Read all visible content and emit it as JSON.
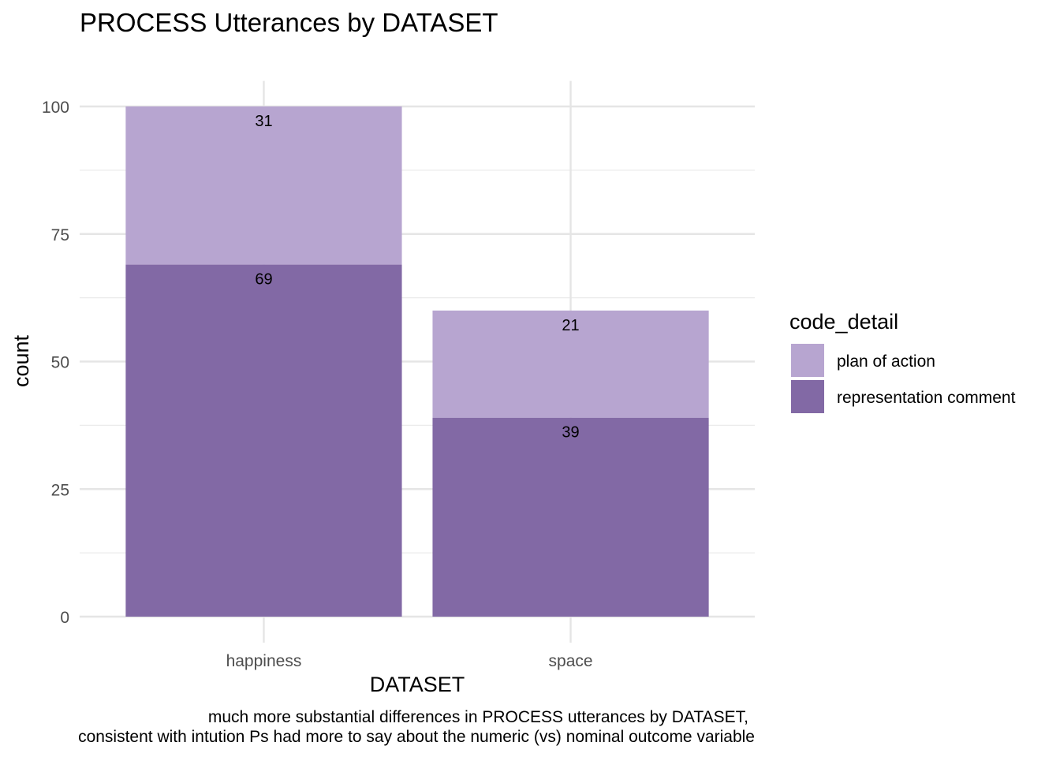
{
  "chart_data": {
    "type": "bar",
    "stacked": true,
    "title": "PROCESS Utterances by DATASET",
    "xlabel": "DATASET",
    "ylabel": "count",
    "categories": [
      "happiness",
      "space"
    ],
    "series": [
      {
        "name": "representation comment",
        "values": [
          69,
          39
        ],
        "color": "#8269a5"
      },
      {
        "name": "plan of action",
        "values": [
          31,
          21
        ],
        "color": "#b7a5d0"
      }
    ],
    "ylim": [
      0,
      105
    ],
    "yticks": [
      0,
      25,
      50,
      75,
      100
    ],
    "grid": true,
    "legend": {
      "title": "code_detail",
      "position": "right",
      "entries": [
        "plan of action",
        "representation comment"
      ]
    },
    "caption": [
      "much more substantial differences in PROCESS utterances by DATASET,",
      "consistent with intution Ps had more to say about the numeric (vs) nominal outcome variable"
    ]
  }
}
